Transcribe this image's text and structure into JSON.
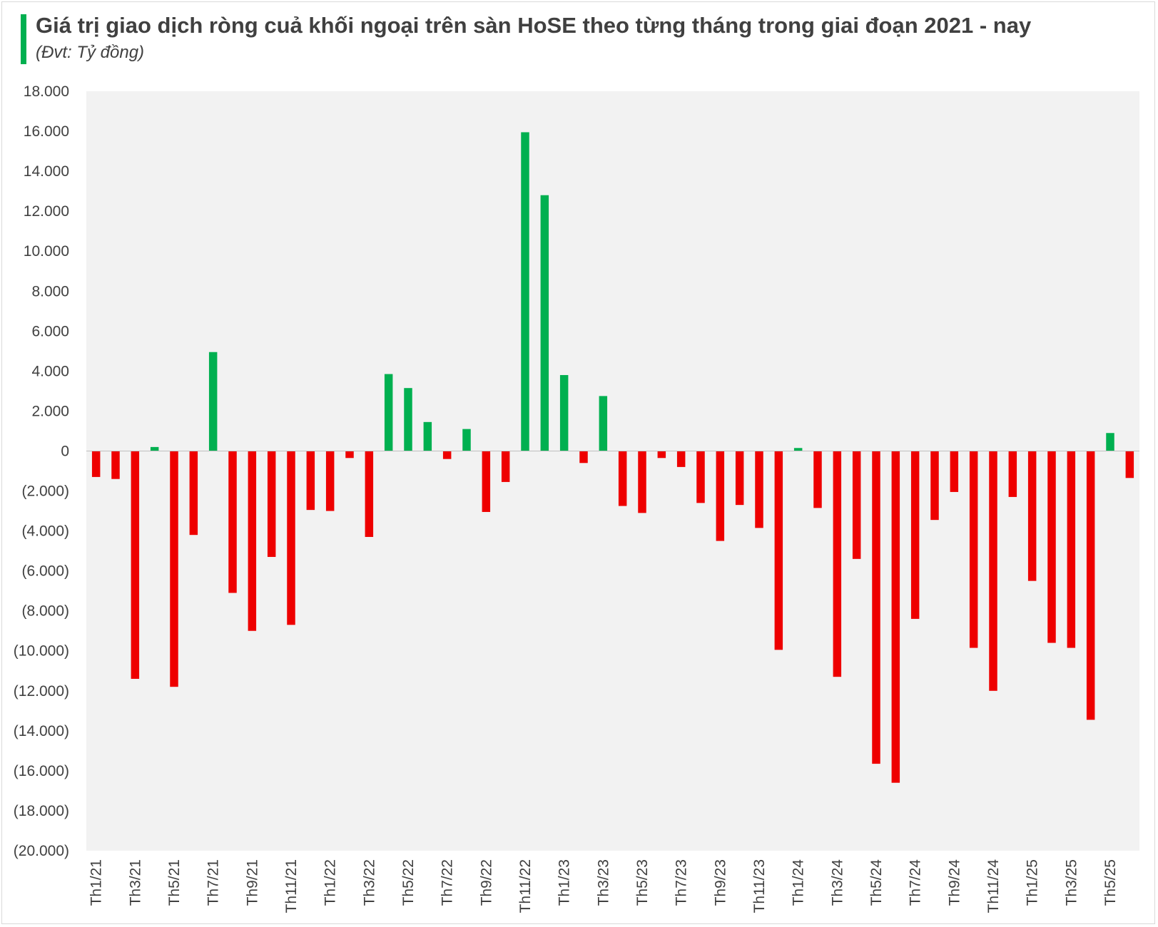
{
  "header": {
    "title": "Giá trị giao dịch ròng cuả khối ngoại trên sàn HoSE theo từng tháng trong giai đoạn 2021 - nay",
    "subtitle": "(Đvt: Tỷ đồng)",
    "accent_color": "#00b050"
  },
  "chart_data": {
    "type": "bar",
    "title": "Giá trị giao dịch ròng cuả khối ngoại trên sàn HoSE theo từng tháng trong giai đoạn 2021 - nay",
    "unit": "(Đvt: Tỷ đồng)",
    "xlabel": "",
    "ylabel": "",
    "ylim": [
      -20000,
      18000
    ],
    "y_ticks": [
      18000,
      16000,
      14000,
      12000,
      10000,
      8000,
      6000,
      4000,
      2000,
      0,
      -2000,
      -4000,
      -6000,
      -8000,
      -10000,
      -12000,
      -14000,
      -16000,
      -18000,
      -20000
    ],
    "y_tick_labels": [
      "18.000",
      "16.000",
      "14.000",
      "12.000",
      "10.000",
      "8.000",
      "6.000",
      "4.000",
      "2.000",
      "0",
      "(2.000)",
      "(4.000)",
      "(6.000)",
      "(8.000)",
      "(10.000)",
      "(12.000)",
      "(14.000)",
      "(16.000)",
      "(18.000)",
      "(20.000)"
    ],
    "categories": [
      "Th1/21",
      "Th2/21",
      "Th3/21",
      "Th4/21",
      "Th5/21",
      "Th6/21",
      "Th7/21",
      "Th8/21",
      "Th9/21",
      "Th10/21",
      "Th11/21",
      "Th12/21",
      "Th1/22",
      "Th2/22",
      "Th3/22",
      "Th4/22",
      "Th5/22",
      "Th6/22",
      "Th7/22",
      "Th8/22",
      "Th9/22",
      "Th10/22",
      "Th11/22",
      "Th12/22",
      "Th1/23",
      "Th2/23",
      "Th3/23",
      "Th4/23",
      "Th5/23",
      "Th6/23",
      "Th7/23",
      "Th8/23",
      "Th9/23",
      "Th10/23",
      "Th11/23",
      "Th12/23",
      "Th1/24",
      "Th2/24",
      "Th3/24",
      "Th4/24",
      "Th5/24",
      "Th6/24",
      "Th7/24",
      "Th8/24",
      "Th9/24",
      "Th10/24",
      "Th11/24",
      "Th12/24",
      "Th1/25",
      "Th2/25",
      "Th3/25",
      "Th4/25",
      "Th5/25",
      "Th6/25"
    ],
    "shown_tick_labels": [
      "Th1/21",
      "Th3/21",
      "Th5/21",
      "Th7/21",
      "Th9/21",
      "Th11/21",
      "Th1/22",
      "Th3/22",
      "Th5/22",
      "Th7/22",
      "Th9/22",
      "Th11/22",
      "Th1/23",
      "Th3/23",
      "Th5/23",
      "Th7/23",
      "Th9/23",
      "Th11/23",
      "Th1/24",
      "Th3/24",
      "Th5/24",
      "Th7/24",
      "Th9/24",
      "Th11/24",
      "Th1/25",
      "Th3/25",
      "Th5/25"
    ],
    "values": [
      -1300,
      -1400,
      -11400,
      200,
      -11800,
      -4200,
      4950,
      -7100,
      -9000,
      -5300,
      -8700,
      -2950,
      -3000,
      -350,
      -4300,
      3850,
      3150,
      1450,
      -400,
      1100,
      -3050,
      -1550,
      15950,
      12800,
      3800,
      -600,
      2750,
      -2750,
      -3100,
      -350,
      -800,
      -2600,
      -4500,
      -2700,
      -3850,
      -9950,
      150,
      -2850,
      -11300,
      -5400,
      -15650,
      -16600,
      -8400,
      -3450,
      -2050,
      -9850,
      -12000,
      -2300,
      -6500,
      -9600,
      -9850,
      -13450,
      900,
      -1350
    ],
    "colors": {
      "positive": "#00b050",
      "negative": "#ee0000",
      "plot_background": "#f2f2f2",
      "axis_text": "#404040"
    },
    "grid": false,
    "legend": "none"
  }
}
